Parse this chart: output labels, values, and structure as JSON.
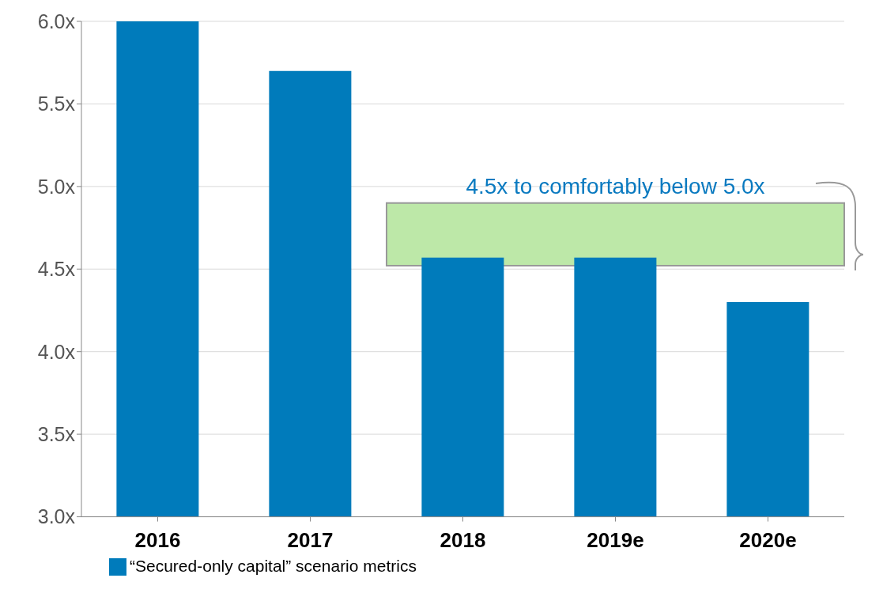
{
  "chart_data": {
    "type": "bar",
    "categories": [
      "2016",
      "2017",
      "2018",
      "2019e",
      "2020e"
    ],
    "series": [
      {
        "name": "“Secured-only capital” scenario metrics",
        "color": "#007bbb",
        "values": [
          6.0,
          5.7,
          4.57,
          4.57,
          4.3
        ]
      }
    ],
    "ylim": [
      3,
      6
    ],
    "yticks": [
      {
        "value": 3,
        "label": "3.0x"
      },
      {
        "value": 3.5,
        "label": "3.5x"
      },
      {
        "value": 4,
        "label": "4.0x"
      },
      {
        "value": 4.5,
        "label": "4.5x"
      },
      {
        "value": 5,
        "label": "5.0x"
      },
      {
        "value": 5.5,
        "label": "5.5x"
      },
      {
        "value": 6,
        "label": "6.0x"
      }
    ],
    "bands": [
      {
        "axis": "y",
        "from": 4.52,
        "to": 4.9,
        "label": "4.5x to comfortably below 5.0x",
        "color": "#bde8a8"
      }
    ],
    "grid": "y",
    "legend": "bottom left"
  }
}
